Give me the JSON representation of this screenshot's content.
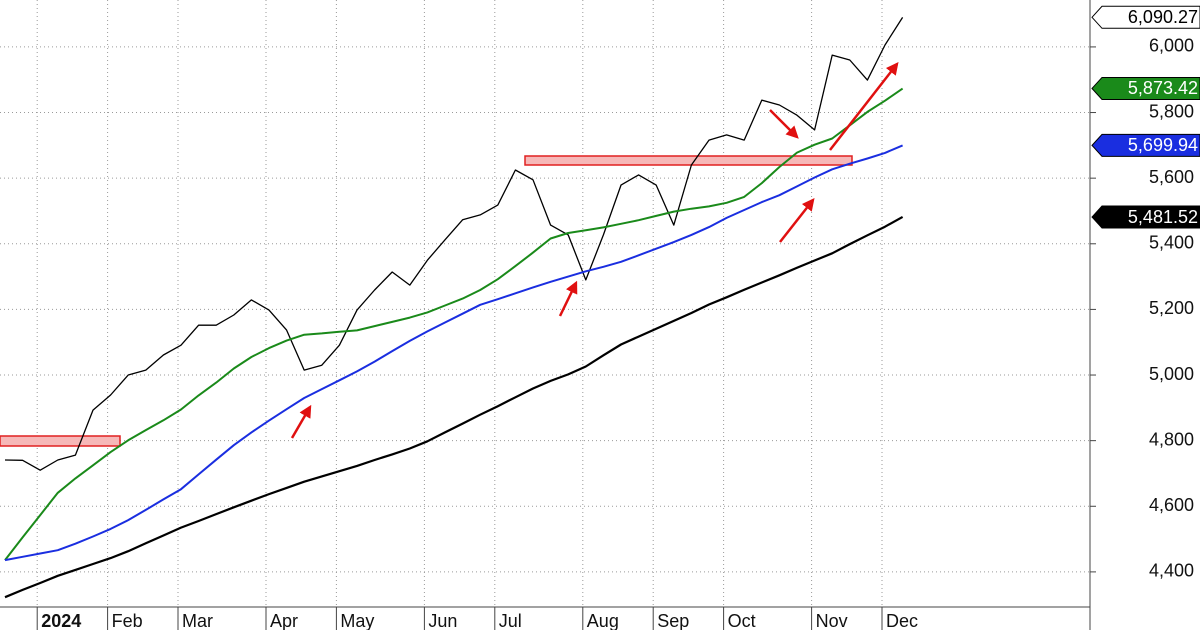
{
  "chart_data": {
    "type": "line",
    "categories": [
      null,
      null,
      "2024",
      null,
      null,
      null,
      "Feb",
      null,
      null,
      null,
      "Mar",
      null,
      null,
      null,
      null,
      "Apr",
      null,
      null,
      null,
      "May",
      null,
      null,
      null,
      null,
      "Jun",
      null,
      null,
      null,
      "Jul",
      null,
      null,
      null,
      null,
      "Aug",
      null,
      null,
      null,
      "Sep",
      null,
      null,
      null,
      "Oct",
      null,
      null,
      null,
      null,
      "Nov",
      null,
      null,
      null,
      "Dec",
      null
    ],
    "series": [
      {
        "color": "#000000",
        "width": 1.3,
        "values": [
          4741,
          4740,
          4710,
          4741,
          4756,
          4893,
          4939,
          5000,
          5015,
          5061,
          5091,
          5152,
          5152,
          5183,
          5229,
          5198,
          5137,
          5015,
          5030,
          5091,
          5198,
          5259,
          5314,
          5274,
          5350,
          5412,
          5473,
          5488,
          5518,
          5625,
          5595,
          5457,
          5427,
          5290,
          5427,
          5579,
          5610,
          5579,
          5457,
          5640,
          5716,
          5732,
          5716,
          5838,
          5823,
          5792,
          5747,
          5975,
          5960,
          5899,
          6006,
          6090
        ]
      },
      {
        "color": "#1a8a1a",
        "width": 2,
        "values": [
          4436,
          4505,
          4573,
          4641,
          4685,
          4725,
          4765,
          4801,
          4832,
          4862,
          4895,
          4938,
          4977,
          5020,
          5055,
          5082,
          5105,
          5123,
          5127,
          5132,
          5136,
          5149,
          5162,
          5175,
          5191,
          5212,
          5233,
          5259,
          5292,
          5332,
          5373,
          5416,
          5433,
          5441,
          5450,
          5461,
          5472,
          5485,
          5498,
          5507,
          5514,
          5525,
          5543,
          5585,
          5634,
          5678,
          5702,
          5721,
          5761,
          5802,
          5836,
          5873
        ]
      },
      {
        "color": "#1a2ee0",
        "width": 2,
        "values": [
          4436,
          4446,
          4456,
          4466,
          4486,
          4508,
          4531,
          4558,
          4589,
          4621,
          4652,
          4697,
          4742,
          4786,
          4825,
          4861,
          4896,
          4930,
          4957,
          4984,
          5011,
          5041,
          5073,
          5104,
          5133,
          5160,
          5187,
          5214,
          5231,
          5249,
          5267,
          5284,
          5300,
          5316,
          5330,
          5345,
          5365,
          5385,
          5405,
          5427,
          5451,
          5479,
          5503,
          5527,
          5548,
          5575,
          5602,
          5627,
          5644,
          5660,
          5677,
          5700
        ]
      },
      {
        "color": "#000000",
        "width": 2.2,
        "values": [
          4323,
          4345,
          4366,
          4388,
          4406,
          4424,
          4442,
          4463,
          4487,
          4511,
          4535,
          4555,
          4576,
          4597,
          4617,
          4637,
          4656,
          4675,
          4691,
          4707,
          4723,
          4741,
          4758,
          4776,
          4798,
          4825,
          4852,
          4879,
          4905,
          4932,
          4959,
          4982,
          5002,
          5026,
          5060,
          5093,
          5117,
          5141,
          5165,
          5189,
          5215,
          5237,
          5260,
          5282,
          5304,
          5327,
          5349,
          5371,
          5399,
          5426,
          5452,
          5482
        ]
      }
    ],
    "ylim": [
      4293,
      6143
    ],
    "yticks": [
      {
        "value": 4400,
        "label": "4,400"
      },
      {
        "value": 4600,
        "label": "4,600"
      },
      {
        "value": 4800,
        "label": "4,800"
      },
      {
        "value": 5000,
        "label": "5,000"
      },
      {
        "value": 5200,
        "label": "5,200"
      },
      {
        "value": 5400,
        "label": "5,400"
      },
      {
        "value": 5600,
        "label": "5,600"
      },
      {
        "value": 5800,
        "label": "5,800"
      },
      {
        "value": 6000,
        "label": "6,000"
      }
    ],
    "grid": true,
    "price_tags": [
      {
        "value": 6090.27,
        "label": "6,090.27",
        "color": "#ffffff",
        "text_color": "#000000"
      },
      {
        "value": 5873.42,
        "label": "5,873.42",
        "color": "#1a8a1a",
        "text_color": "#ffffff"
      },
      {
        "value": 5699.94,
        "label": "5,699.94",
        "color": "#1a2ee0",
        "text_color": "#ffffff"
      },
      {
        "value": 5481.52,
        "label": "5,481.52",
        "color": "#000000",
        "text_color": "#ffffff"
      }
    ]
  }
}
